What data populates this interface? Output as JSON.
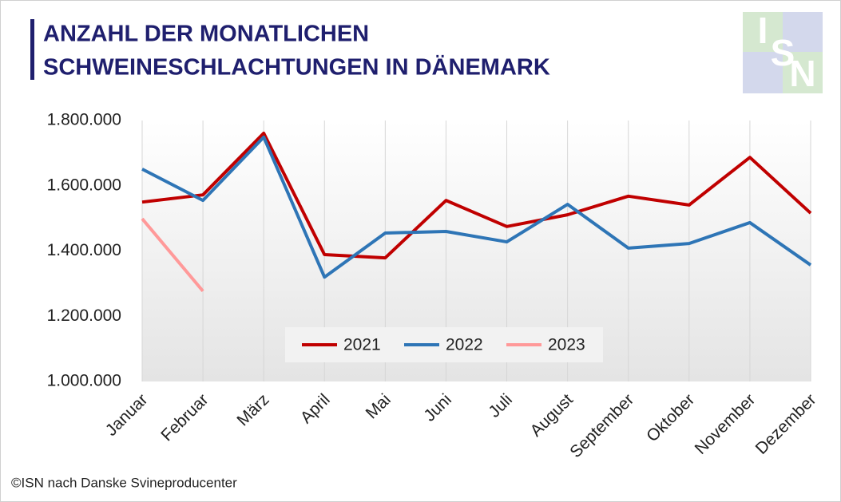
{
  "logo": [
    "I",
    "S",
    "N"
  ],
  "source": "©ISN nach Danske Svineproducenter",
  "chart_data": {
    "type": "line",
    "title": [
      "ANZAHL DER MONATLICHEN",
      "SCHWEINESCHLACHTUNGEN IN DÄNEMARK"
    ],
    "categories": [
      "Januar",
      "Februar",
      "März",
      "April",
      "Mai",
      "Juni",
      "Juli",
      "August",
      "September",
      "Oktober",
      "November",
      "Dezember"
    ],
    "series": [
      {
        "name": "2021",
        "color": "#c00000",
        "values": [
          1550000,
          1572000,
          1761000,
          1389000,
          1379000,
          1555000,
          1475000,
          1511000,
          1568000,
          1541000,
          1687000,
          1516000
        ]
      },
      {
        "name": "2022",
        "color": "#2e75b6",
        "values": [
          1651000,
          1555000,
          1749000,
          1320000,
          1455000,
          1460000,
          1428000,
          1543000,
          1409000,
          1423000,
          1487000,
          1357000
        ]
      },
      {
        "name": "2023",
        "color": "#ff9999",
        "values": [
          1499000,
          1277000,
          null,
          null,
          null,
          null,
          null,
          null,
          null,
          null,
          null,
          null
        ]
      }
    ],
    "ylim": [
      1000000,
      1800000
    ],
    "yticks": [
      {
        "value": 1000000,
        "label": "1.000.000"
      },
      {
        "value": 1200000,
        "label": "1.200.000"
      },
      {
        "value": 1400000,
        "label": "1.400.000"
      },
      {
        "value": 1600000,
        "label": "1.600.000"
      },
      {
        "value": 1800000,
        "label": "1.800.000"
      }
    ],
    "grid": true,
    "legend": "bottom"
  }
}
